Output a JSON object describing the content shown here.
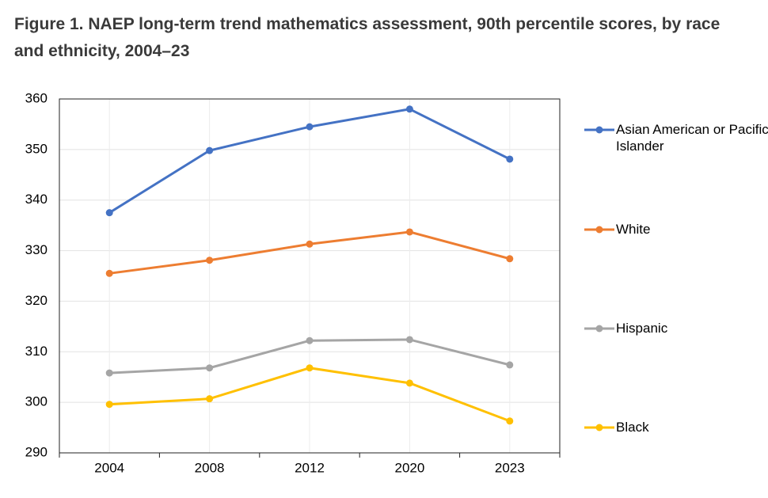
{
  "chart_data": {
    "type": "line",
    "title": "Figure 1. NAEP long-term trend mathematics assessment, 90th percentile scores, by race and ethnicity, 2004–23",
    "categories": [
      "2004",
      "2008",
      "2012",
      "2020",
      "2023"
    ],
    "series": [
      {
        "name": "Asian American or Pacific Islander",
        "color": "#4472c4",
        "values": [
          337.5,
          349.8,
          354.5,
          358,
          348.1
        ]
      },
      {
        "name": "White",
        "color": "#ed7d31",
        "values": [
          325.5,
          328.1,
          331.3,
          333.7,
          328.4
        ]
      },
      {
        "name": "Hispanic",
        "color": "#a5a5a5",
        "values": [
          305.8,
          306.8,
          312.2,
          312.4,
          307.4
        ]
      },
      {
        "name": "Black",
        "color": "#ffc000",
        "values": [
          299.6,
          300.7,
          306.8,
          303.8,
          296.3
        ]
      }
    ],
    "ylim": [
      290,
      360
    ],
    "yticks": [
      290,
      300,
      310,
      320,
      330,
      340,
      350,
      360
    ],
    "grid": true
  }
}
